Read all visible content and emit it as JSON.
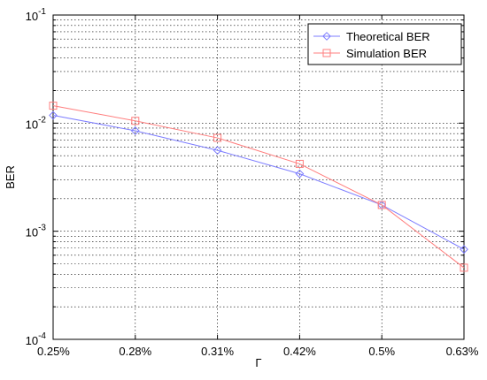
{
  "chart_data": {
    "type": "line",
    "title": "",
    "xlabel": "Γ",
    "ylabel": "BER",
    "categories": [
      "0.25%",
      "0.28%",
      "0.31%",
      "0.42%",
      "0.5%",
      "0.63%"
    ],
    "y_scale": "log",
    "ylim": [
      0.0001,
      0.1
    ],
    "y_ticks": [
      {
        "base": "10",
        "exp": "-4"
      },
      {
        "base": "10",
        "exp": "-3"
      },
      {
        "base": "10",
        "exp": "-2"
      },
      {
        "base": "10",
        "exp": "-1"
      }
    ],
    "grid": true,
    "legend_position": "top-right",
    "series": [
      {
        "name": "Theoretical BER",
        "color": "#7d7dff",
        "marker": "diamond",
        "values": [
          0.0118,
          0.0085,
          0.0056,
          0.0034,
          0.00175,
          0.00068
        ]
      },
      {
        "name": "Simulation BER",
        "color": "#ff7d7d",
        "marker": "square",
        "values": [
          0.0145,
          0.0105,
          0.0073,
          0.0042,
          0.00175,
          0.00046
        ]
      }
    ]
  }
}
